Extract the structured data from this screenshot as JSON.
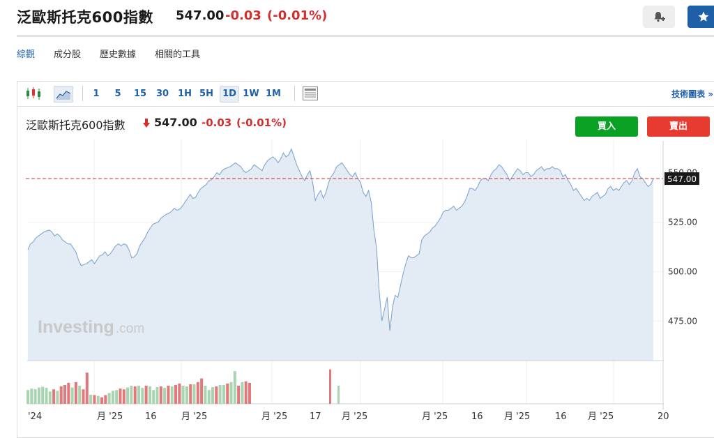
{
  "header": {
    "title": "泛歐斯托克600指數",
    "price": "547.00",
    "change": "-0.03",
    "change_pct": "(-0.01%)"
  },
  "tabs": [
    {
      "label": "綜觀",
      "active": true
    },
    {
      "label": "成分股",
      "active": false
    },
    {
      "label": "歷史數據",
      "active": false
    },
    {
      "label": "相關的工具",
      "active": false
    }
  ],
  "toolbar": {
    "timeframes": [
      "1",
      "5",
      "15",
      "30",
      "1H",
      "5H",
      "1D",
      "1W",
      "1M"
    ],
    "active_timeframe": "1D",
    "tech_chart_label": "技術圖表 »"
  },
  "chart_header": {
    "title": "泛歐斯托克600指數",
    "price": "547.00",
    "change": "-0.03",
    "change_pct": "(-0.01%)",
    "buy_label": "買入",
    "sell_label": "賣出"
  },
  "watermark": {
    "brand": "Investing",
    "suffix": ".com"
  },
  "colors": {
    "accent": "#1f5fa8",
    "down": "#d32f2f",
    "buy": "#0aa125",
    "sell": "#e63b2e",
    "line": "#7fa7cf",
    "area": "#e3ebf4",
    "vol_up": "#a8d4b0",
    "vol_down": "#e2787a"
  },
  "chart_data": {
    "type": "area",
    "ylim": [
      455,
      565
    ],
    "yticks": [
      "525.00",
      "500.00",
      "475.00"
    ],
    "ytick_values": [
      525,
      500,
      475
    ],
    "partial_top_tick": "550.00",
    "last_price_label": "547.00",
    "last_price": 547.0,
    "xtick_labels": [
      "'24",
      "月 '25",
      "16",
      "月 '25",
      "月 '25",
      "17",
      "月 '25",
      "月 '25",
      "16",
      "月 '25",
      "16",
      "月 '25",
      "20"
    ],
    "values": [
      511,
      514,
      515,
      517,
      518,
      519,
      520,
      520.5,
      521,
      520,
      518,
      519,
      518,
      516,
      515,
      514,
      514,
      512,
      510,
      506,
      503,
      503.5,
      504,
      505,
      506,
      504,
      506,
      508,
      508.5,
      510,
      508,
      509,
      511,
      513,
      514,
      513,
      514,
      513.5,
      511,
      507,
      507.5,
      509,
      513,
      515,
      517,
      520,
      522,
      524,
      524.5,
      525,
      527,
      528,
      529,
      529.5,
      530.5,
      532,
      531,
      531.5,
      533,
      535,
      537,
      539,
      537,
      537.5,
      540,
      542,
      543,
      544,
      546,
      546.5,
      548,
      550,
      549,
      551,
      552,
      552.5,
      553,
      554,
      555,
      554,
      553,
      551,
      550,
      551,
      552,
      554,
      553,
      552,
      551,
      554,
      556,
      557,
      558,
      557,
      555,
      557,
      560,
      558,
      559,
      562,
      558,
      554,
      551,
      548,
      546,
      549,
      551,
      545,
      536,
      539,
      541,
      537,
      540,
      545,
      548,
      550,
      553,
      554,
      555,
      553,
      551,
      549,
      548,
      550,
      547,
      545,
      540,
      538,
      541,
      535,
      521,
      512,
      490,
      475,
      481,
      487,
      470,
      482,
      488,
      487,
      493,
      499,
      504,
      508,
      507,
      507,
      508,
      509,
      516,
      518,
      519,
      520,
      522,
      523,
      525,
      527,
      530,
      531,
      531,
      532,
      533,
      531,
      532,
      533,
      535,
      538,
      542,
      542,
      541,
      543,
      546,
      547,
      547,
      546,
      549,
      551,
      552,
      554,
      553,
      551,
      549,
      546,
      548,
      550,
      552,
      551,
      549,
      550,
      550,
      548,
      549,
      551,
      552,
      553,
      551,
      552,
      552,
      553,
      552,
      552,
      551,
      548,
      549,
      546,
      544,
      541,
      542,
      540,
      538,
      536,
      537,
      536,
      538,
      539,
      540,
      537,
      538,
      539,
      542,
      543,
      541,
      542,
      541,
      543,
      545,
      546,
      544,
      546,
      550,
      552,
      548,
      547,
      545,
      543,
      544,
      547
    ]
  },
  "volume_bars": {
    "values": [
      0.38,
      0.42,
      0.4,
      0.45,
      0.47,
      0.44,
      0.34,
      0.4,
      0.36,
      0.48,
      0.52,
      0.58,
      0.45,
      0.6,
      0.5,
      0.4,
      0.86,
      0.25,
      0.24,
      0.22,
      0.18,
      0.24,
      0.3,
      0.36,
      0.38,
      0.42,
      0.4,
      0.45,
      0.5,
      0.48,
      0.5,
      0.44,
      0.5,
      0.48,
      0.38,
      0.46,
      0.48,
      0.44,
      0.5,
      0.48,
      0.52,
      0.56,
      0.5,
      0.48,
      0.54,
      0.54,
      0.6,
      0.7,
      0.5,
      0.38,
      0.46,
      0.48,
      0.52,
      0.52,
      0.56,
      0.6,
      0.9,
      0.5,
      0.6,
      0.62,
      0.58
    ],
    "up": [
      1,
      1,
      1,
      1,
      1,
      1,
      1,
      0,
      1,
      0,
      0,
      0,
      1,
      0,
      1,
      0,
      0,
      1,
      0,
      1,
      0,
      0,
      1,
      1,
      1,
      0,
      0,
      1,
      1,
      0,
      1,
      1,
      0,
      1,
      1,
      1,
      0,
      1,
      0,
      1,
      0,
      0,
      1,
      1,
      0,
      1,
      0,
      0,
      1,
      1,
      1,
      0,
      1,
      1,
      0,
      1,
      1,
      0,
      1,
      0,
      0
    ],
    "isolated": [
      {
        "value": 0.95,
        "up": 0
      },
      {
        "value": 0.5,
        "up": 1
      }
    ]
  }
}
